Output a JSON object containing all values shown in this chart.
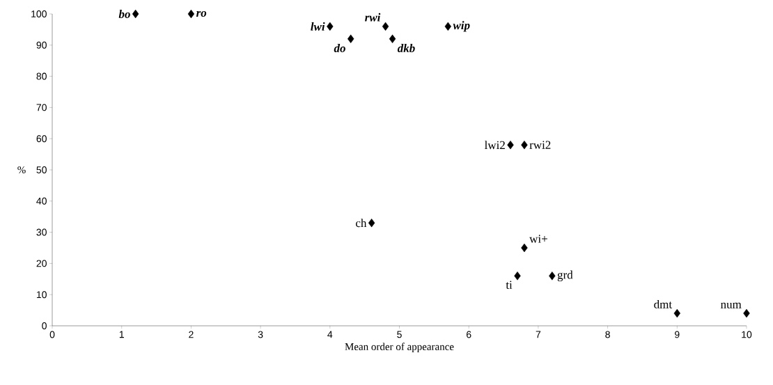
{
  "chart_data": {
    "type": "scatter",
    "xlabel": "Mean order of appearance",
    "ylabel": "%",
    "x": [
      1.2,
      2.0,
      4.0,
      4.3,
      4.8,
      4.9,
      5.7,
      6.6,
      6.8,
      4.6,
      6.8,
      6.7,
      7.2,
      9,
      10
    ],
    "values": [
      100,
      100,
      96,
      92,
      96,
      92,
      96,
      58,
      58,
      33,
      25,
      16,
      16,
      4,
      4
    ],
    "color": "#000000",
    "marker": "diamond",
    "grid": false,
    "xlim": [
      0,
      10
    ],
    "ylim": [
      0,
      100
    ],
    "xticks": [
      0,
      1,
      2,
      3,
      4,
      5,
      6,
      7,
      8,
      9,
      10
    ],
    "yticks": [
      0,
      10,
      20,
      30,
      40,
      50,
      60,
      70,
      80,
      90,
      100
    ],
    "annotations": [
      {
        "text": "bo",
        "x": 1.2,
        "y": 100
      },
      {
        "text": "ro",
        "x": 2.0,
        "y": 100
      },
      {
        "text": "lwi",
        "x": 4.0,
        "y": 96
      },
      {
        "text": "do",
        "x": 4.3,
        "y": 92
      },
      {
        "text": "rwi",
        "x": 4.8,
        "y": 96
      },
      {
        "text": "dkb",
        "x": 4.9,
        "y": 92
      },
      {
        "text": "wip",
        "x": 5.7,
        "y": 96
      },
      {
        "text": "lwi2",
        "x": 6.6,
        "y": 58
      },
      {
        "text": "rwi2",
        "x": 6.8,
        "y": 58
      },
      {
        "text": "ch",
        "x": 4.6,
        "y": 33
      },
      {
        "text": "wi+",
        "x": 6.8,
        "y": 25
      },
      {
        "text": "ti",
        "x": 6.7,
        "y": 16
      },
      {
        "text": "grd",
        "x": 7.2,
        "y": 16
      },
      {
        "text": "dmt",
        "x": 9,
        "y": 4
      },
      {
        "text": "num",
        "x": 10,
        "y": 4
      }
    ]
  }
}
